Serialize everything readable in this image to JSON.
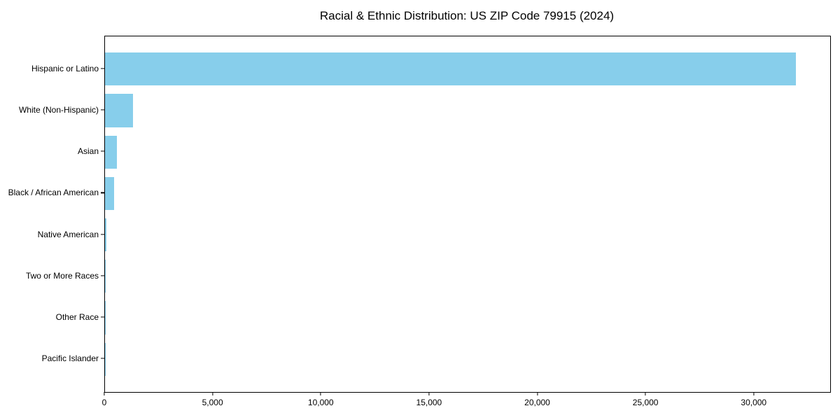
{
  "figure": {
    "background_color": "#ffffff",
    "text_color": "#000000"
  },
  "chart_data": {
    "type": "bar",
    "orientation": "horizontal",
    "title": "Racial & Ethnic Distribution: US ZIP Code 79915 (2024)",
    "categories": [
      "Hispanic or Latino",
      "White (Non-Hispanic)",
      "Asian",
      "Black / African American",
      "Native American",
      "Two or More Races",
      "Other Race",
      "Pacific Islander"
    ],
    "values": [
      31900,
      1290,
      540,
      420,
      50,
      40,
      15,
      5
    ],
    "bar_color": "#87CEEB",
    "xlabel": "",
    "ylabel": "",
    "xlim": [
      0,
      33500
    ],
    "xticks": [
      0,
      5000,
      10000,
      15000,
      20000,
      25000,
      30000
    ],
    "xtick_labels": [
      "0",
      "5,000",
      "10,000",
      "15,000",
      "20,000",
      "25,000",
      "30,000"
    ],
    "grid": false,
    "legend": "none"
  }
}
